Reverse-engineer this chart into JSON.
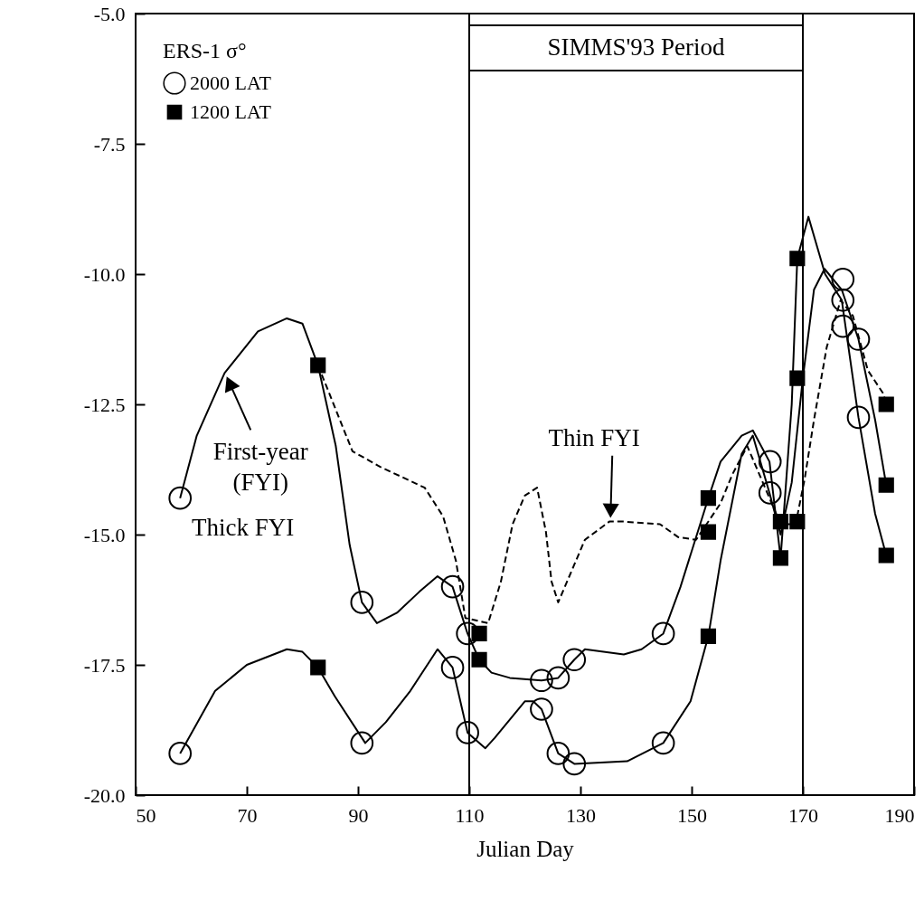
{
  "chart_data": {
    "type": "line",
    "xlabel": "Julian Day",
    "legend_title": "ERS-1 σ°",
    "legend": "top left",
    "grid": false,
    "xlim": [
      50,
      190
    ],
    "ylim": [
      -20,
      -5
    ],
    "xticks": [
      50,
      70,
      90,
      110,
      130,
      150,
      170,
      190
    ],
    "yticks": [
      {
        "value": -5,
        "label": "-5.0"
      },
      -7.5,
      {
        "value": -10,
        "label": "-10.0"
      },
      -12.5,
      {
        "value": -15,
        "label": "-15.0"
      },
      -17.5,
      {
        "value": -20,
        "label": "-20.0"
      }
    ],
    "series": [
      {
        "color": "#000000",
        "line_style": "solid",
        "x": [
          58,
          61,
          66,
          72,
          77.2,
          80,
          82.8,
          86,
          88.5,
          90.7,
          93.4,
          97,
          101,
          104.3,
          107,
          109.7,
          111.8,
          114,
          117.3,
          123,
          126,
          128.9,
          130.8,
          137.8,
          141,
          144.9,
          148,
          153,
          155.2,
          159,
          161,
          164,
          166,
          168,
          169,
          171,
          174,
          177,
          180,
          183,
          185
        ],
        "values": [
          -14.3,
          -13.1,
          -11.9,
          -11.1,
          -10.85,
          -10.95,
          -11.75,
          -13.3,
          -15.2,
          -16.3,
          -16.7,
          -16.5,
          -16.1,
          -15.8,
          -16.0,
          -16.9,
          -17.4,
          -17.65,
          -17.75,
          -17.8,
          -17.75,
          -17.4,
          -17.2,
          -17.3,
          -17.2,
          -16.9,
          -16.0,
          -14.3,
          -13.6,
          -13.1,
          -13.0,
          -13.6,
          -15.45,
          -12.5,
          -9.7,
          -8.9,
          -10.0,
          -10.5,
          -12.75,
          -14.6,
          -15.4
        ]
      },
      {
        "color": "#000000",
        "line_style": "solid",
        "x": [
          58,
          64.3,
          70,
          77.2,
          80,
          82.8,
          85.8,
          91.3,
          95,
          99.4,
          104.3,
          107,
          109.7,
          112.9,
          114.6,
          120,
          121.5,
          123,
          126,
          128.9,
          138.4,
          144.9,
          149.8,
          153,
          155.2,
          159,
          161,
          164,
          166,
          168,
          170,
          172,
          173.9,
          177,
          180,
          183,
          185
        ],
        "values": [
          -19.2,
          -18.0,
          -17.5,
          -17.2,
          -17.25,
          -17.55,
          -18.1,
          -19.0,
          -18.6,
          -18.0,
          -17.2,
          -17.55,
          -18.8,
          -19.1,
          -18.9,
          -18.2,
          -18.2,
          -18.35,
          -19.2,
          -19.4,
          -19.35,
          -19.0,
          -18.2,
          -16.95,
          -15.5,
          -13.45,
          -13.1,
          -14.2,
          -15.0,
          -14.0,
          -12.0,
          -10.3,
          -9.9,
          -10.3,
          -11.25,
          -12.8,
          -14.05
        ]
      },
      {
        "color": "#000000",
        "line_style": "dashed",
        "x": [
          82.8,
          89,
          94,
          102,
          105.3,
          107.6,
          109.3,
          113.4,
          115.7,
          117.8,
          120,
          122.2,
          123.8,
          124.8,
          126,
          129.2,
          130.8,
          135.2,
          137.8,
          144.3,
          147.6,
          150.8,
          155.2,
          157.3,
          160,
          166,
          168.7,
          170.3,
          172,
          174.3,
          176.8,
          179,
          181.7,
          184.5,
          185
        ],
        "values": [
          -11.75,
          -13.4,
          -13.7,
          -14.1,
          -14.65,
          -15.5,
          -16.6,
          -16.7,
          -15.9,
          -14.8,
          -14.25,
          -14.1,
          -14.95,
          -15.9,
          -16.3,
          -15.5,
          -15.1,
          -14.75,
          -14.75,
          -14.8,
          -15.05,
          -15.1,
          -14.4,
          -13.85,
          -13.3,
          -14.8,
          -14.8,
          -13.95,
          -12.8,
          -11.4,
          -10.5,
          -10.8,
          -11.85,
          -12.3,
          -12.5
        ]
      },
      {
        "type": "scatter",
        "name": "2000 LAT",
        "marker": "circle",
        "color": "#000000",
        "x": [
          58,
          58,
          90.7,
          90.7,
          107,
          107,
          109.7,
          109.7,
          123,
          126,
          128.9,
          123,
          126,
          128.9,
          144.9,
          144.9,
          164.1,
          164.1,
          177.2,
          177.2,
          177.2,
          180,
          180
        ],
        "values": [
          -14.3,
          -19.2,
          -16.3,
          -19.0,
          -16.0,
          -17.55,
          -16.9,
          -18.8,
          -17.8,
          -17.75,
          -17.4,
          -18.35,
          -19.2,
          -19.4,
          -16.9,
          -19.0,
          -13.6,
          -14.2,
          -10.1,
          -10.5,
          -11.0,
          -11.25,
          -12.75
        ]
      },
      {
        "type": "scatter",
        "name": "1200 LAT",
        "marker": "square",
        "color": "#000000",
        "x": [
          82.8,
          82.8,
          111.8,
          111.8,
          153,
          153,
          153,
          166,
          166,
          169,
          169,
          169,
          185,
          185,
          185
        ],
        "values": [
          -11.75,
          -17.55,
          -16.9,
          -17.4,
          -14.3,
          -14.95,
          -16.95,
          -14.75,
          -15.45,
          -14.75,
          -9.7,
          -12.0,
          -14.05,
          -15.4,
          -12.5
        ]
      }
    ],
    "ref_lines": [
      {
        "axis": "x",
        "value": 110,
        "color": "#000000"
      },
      {
        "axis": "x",
        "value": 170,
        "color": "#000000"
      }
    ],
    "annotations": [
      "SIMMS'93 Period",
      {
        "text": "First-year\n(FYI)",
        "x": 66.3,
        "y": -11.95
      },
      {
        "text": "Thin FYI",
        "x": 135.4,
        "y": -14.7
      },
      "Thick FYI"
    ]
  }
}
